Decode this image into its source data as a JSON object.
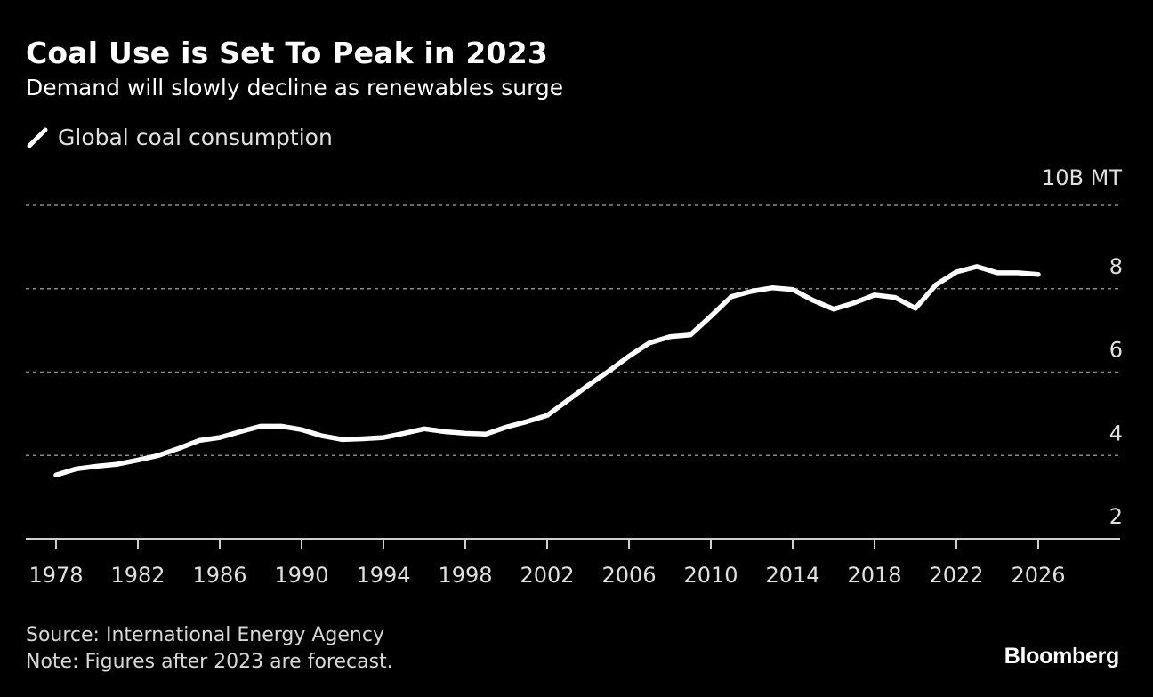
{
  "header": {
    "title": "Coal Use is Set To Peak in 2023",
    "subtitle": "Demand will slowly decline as renewables surge"
  },
  "footer": {
    "source": "Source: International Energy Agency",
    "note": "Note: Figures after 2023 are forecast.",
    "brand": "Bloomberg"
  },
  "colors": {
    "background": "#000000",
    "line": "#ffffff",
    "grid": "#8a8a8a",
    "axis": "#cfcfcf",
    "tick_text": "#e0e0e0"
  },
  "chart_data": {
    "type": "line",
    "title": "Coal Use is Set To Peak in 2023",
    "subtitle": "Demand will slowly decline as renewables surge",
    "xlabel": "",
    "ylabel": "",
    "unit_label": "10B MT",
    "ylim": [
      2,
      10
    ],
    "xlim": [
      1978,
      2026
    ],
    "y_ticks": [
      {
        "value": 10,
        "label": "10B MT"
      },
      {
        "value": 8,
        "label": "8"
      },
      {
        "value": 6,
        "label": "6"
      },
      {
        "value": 4,
        "label": "4"
      },
      {
        "value": 2,
        "label": "2"
      }
    ],
    "x_ticks": [
      1978,
      1982,
      1986,
      1990,
      1994,
      1998,
      2002,
      2006,
      2010,
      2014,
      2018,
      2022,
      2026
    ],
    "x_tick_labels": [
      "1978",
      "1982",
      "1986",
      "1990",
      "1994",
      "1998",
      "2002",
      "2006",
      "2010",
      "2014",
      "2018",
      "2022",
      "2026"
    ],
    "grid": true,
    "grid_style": "dotted horizontal",
    "legend_position": "top-left",
    "x": [
      1978,
      1979,
      1980,
      1981,
      1982,
      1983,
      1984,
      1985,
      1986,
      1987,
      1988,
      1989,
      1990,
      1991,
      1992,
      1993,
      1994,
      1995,
      1996,
      1997,
      1998,
      1999,
      2000,
      2001,
      2002,
      2003,
      2004,
      2005,
      2006,
      2007,
      2008,
      2009,
      2010,
      2011,
      2012,
      2013,
      2014,
      2015,
      2016,
      2017,
      2018,
      2019,
      2020,
      2021,
      2022,
      2023,
      2024,
      2025,
      2026
    ],
    "series": [
      {
        "name": "Global coal consumption",
        "color": "#ffffff",
        "values": [
          3.53,
          3.68,
          3.74,
          3.79,
          3.89,
          4.0,
          4.17,
          4.36,
          4.43,
          4.57,
          4.7,
          4.7,
          4.62,
          4.47,
          4.38,
          4.4,
          4.43,
          4.53,
          4.64,
          4.57,
          4.53,
          4.51,
          4.68,
          4.81,
          4.96,
          5.32,
          5.68,
          6.02,
          6.38,
          6.7,
          6.85,
          6.89,
          7.34,
          7.81,
          7.94,
          8.02,
          7.98,
          7.72,
          7.51,
          7.66,
          7.85,
          7.79,
          7.53,
          8.09,
          8.4,
          8.53,
          8.38,
          8.38,
          8.34
        ]
      }
    ],
    "annotations": [
      "Figures after 2023 are forecast"
    ]
  }
}
